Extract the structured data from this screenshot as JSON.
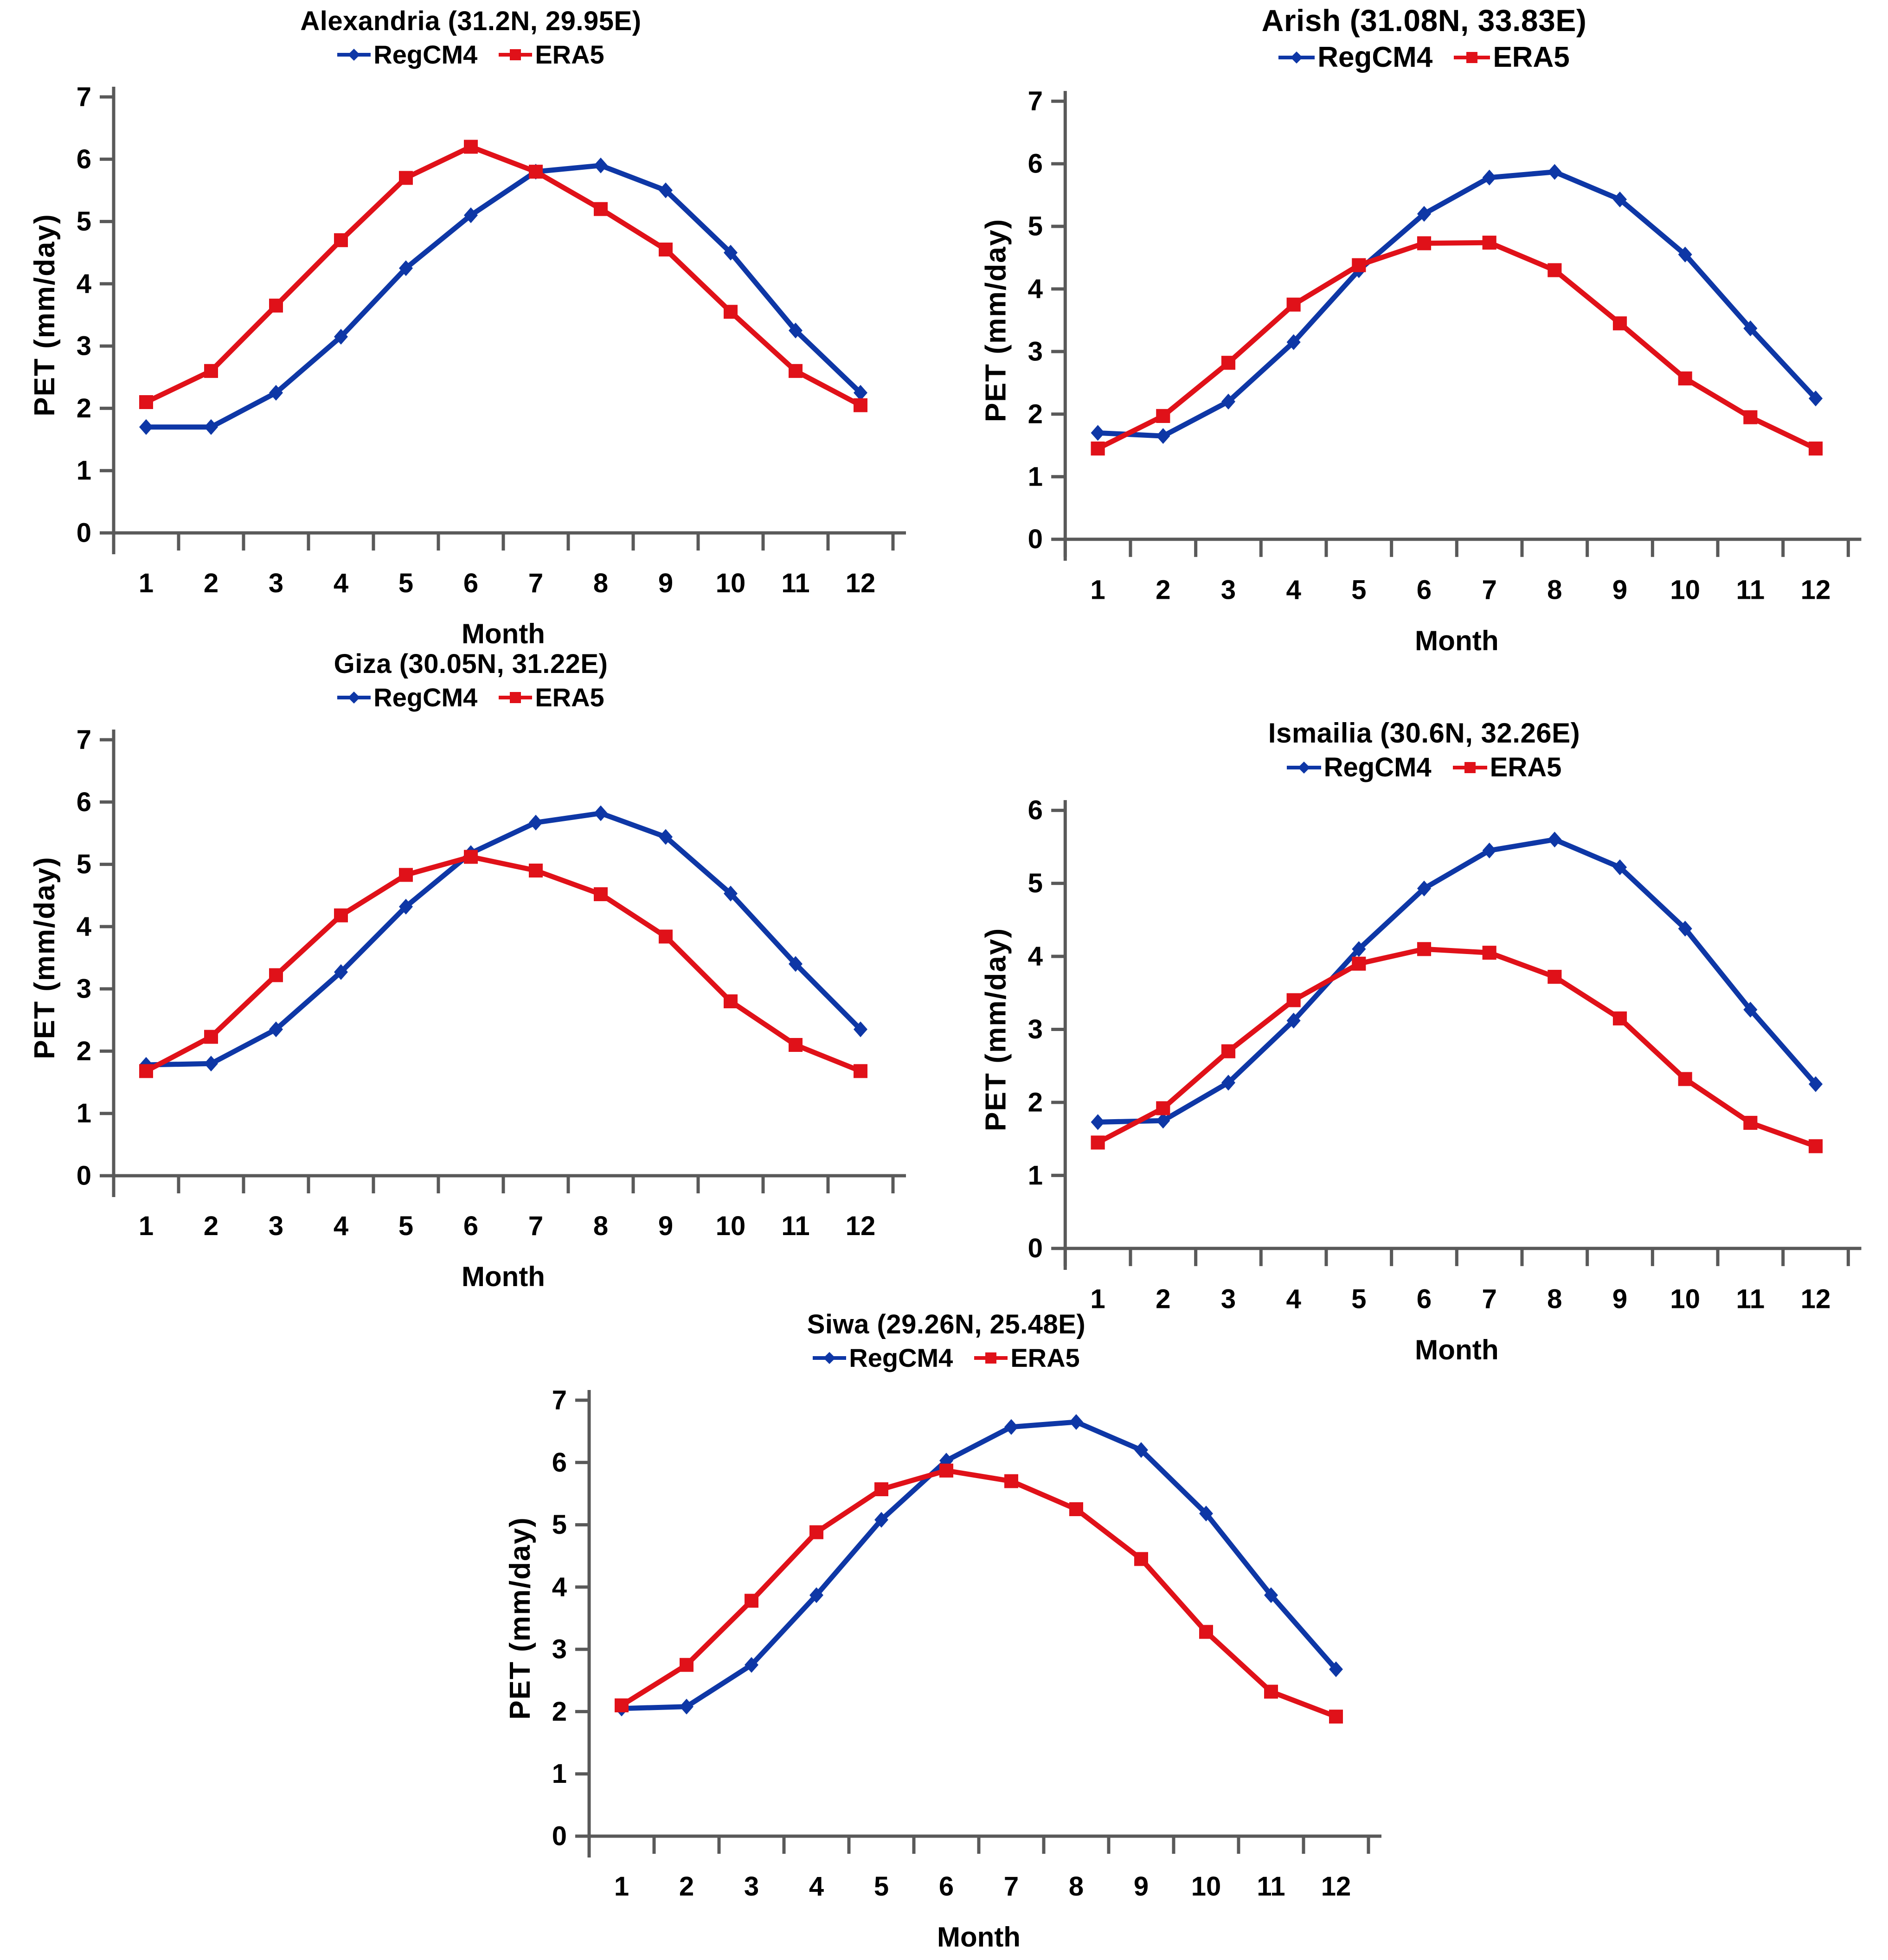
{
  "figure": {
    "description": "Monthly potential evapotranspiration comparison of RegCM4 and ERA5 at five Egyptian stations",
    "background": "#ffffff"
  },
  "colors": {
    "regcm4": "#0e37a6",
    "era5": "#e01119",
    "axis_line": "#595959",
    "tick_text": "#000000"
  },
  "axes": {
    "xlabel": "Month",
    "ylabel": "PET (mm/day)"
  },
  "chart_data": [
    {
      "type": "line",
      "title": "Alexandria (31.2N, 29.95E)",
      "xlabel": "Month",
      "ylabel": "PET (mm/day)",
      "categories": [
        "1",
        "2",
        "3",
        "4",
        "5",
        "6",
        "7",
        "8",
        "9",
        "10",
        "11",
        "12"
      ],
      "ylim": [
        0,
        7
      ],
      "yticks": [
        0,
        1,
        2,
        3,
        4,
        5,
        6,
        7
      ],
      "grid": false,
      "legend_position": "top",
      "series": [
        {
          "name": "RegCM4",
          "marker": "diamond",
          "color": "#0e37a6",
          "values": [
            1.7,
            1.7,
            2.25,
            3.15,
            4.25,
            5.1,
            5.8,
            5.9,
            5.5,
            4.5,
            3.25,
            2.25
          ]
        },
        {
          "name": "ERA5",
          "marker": "square",
          "color": "#e01119",
          "values": [
            2.1,
            2.6,
            3.65,
            4.7,
            5.7,
            6.2,
            5.8,
            5.2,
            4.55,
            3.55,
            2.6,
            2.05
          ]
        }
      ]
    },
    {
      "type": "line",
      "title": "Arish (31.08N, 33.83E)",
      "xlabel": "Month",
      "ylabel": "PET (mm/day)",
      "categories": [
        "1",
        "2",
        "3",
        "4",
        "5",
        "6",
        "7",
        "8",
        "9",
        "10",
        "11",
        "12"
      ],
      "ylim": [
        0,
        7
      ],
      "yticks": [
        0,
        1,
        2,
        3,
        4,
        5,
        6,
        7
      ],
      "grid": false,
      "legend_position": "top",
      "series": [
        {
          "name": "RegCM4",
          "marker": "diamond",
          "color": "#0e37a6",
          "values": [
            1.7,
            1.65,
            2.2,
            3.15,
            4.3,
            5.2,
            5.78,
            5.87,
            5.43,
            4.55,
            3.37,
            2.25
          ]
        },
        {
          "name": "ERA5",
          "marker": "square",
          "color": "#e01119",
          "values": [
            1.45,
            1.97,
            2.82,
            3.75,
            4.38,
            4.73,
            4.74,
            4.3,
            3.45,
            2.57,
            1.95,
            1.45
          ]
        }
      ]
    },
    {
      "type": "line",
      "title": "Giza (30.05N, 31.22E)",
      "xlabel": "Month",
      "ylabel": "PET (mm/day)",
      "categories": [
        "1",
        "2",
        "3",
        "4",
        "5",
        "6",
        "7",
        "8",
        "9",
        "10",
        "11",
        "12"
      ],
      "ylim": [
        0,
        7
      ],
      "yticks": [
        0,
        1,
        2,
        3,
        4,
        5,
        6,
        7
      ],
      "grid": false,
      "legend_position": "top",
      "series": [
        {
          "name": "RegCM4",
          "marker": "diamond",
          "color": "#0e37a6",
          "values": [
            1.78,
            1.8,
            2.35,
            3.27,
            4.32,
            5.18,
            5.67,
            5.82,
            5.44,
            4.53,
            3.4,
            2.35
          ]
        },
        {
          "name": "ERA5",
          "marker": "square",
          "color": "#e01119",
          "values": [
            1.68,
            2.23,
            3.22,
            4.18,
            4.83,
            5.12,
            4.9,
            4.52,
            3.84,
            2.8,
            2.1,
            1.68
          ]
        }
      ]
    },
    {
      "type": "line",
      "title": "Ismailia (30.6N, 32.26E)",
      "xlabel": "Month",
      "ylabel": "PET (mm/day)",
      "categories": [
        "1",
        "2",
        "3",
        "4",
        "5",
        "6",
        "7",
        "8",
        "9",
        "10",
        "11",
        "12"
      ],
      "ylim": [
        0,
        6
      ],
      "yticks": [
        0,
        1,
        2,
        3,
        4,
        5,
        6
      ],
      "grid": false,
      "legend_position": "top",
      "series": [
        {
          "name": "RegCM4",
          "marker": "diamond",
          "color": "#0e37a6",
          "values": [
            1.73,
            1.75,
            2.27,
            3.12,
            4.1,
            4.93,
            5.45,
            5.6,
            5.22,
            4.38,
            3.27,
            2.25
          ]
        },
        {
          "name": "ERA5",
          "marker": "square",
          "color": "#e01119",
          "values": [
            1.45,
            1.92,
            2.7,
            3.4,
            3.9,
            4.1,
            4.05,
            3.72,
            3.15,
            2.32,
            1.72,
            1.4
          ]
        }
      ]
    },
    {
      "type": "line",
      "title": "Siwa (29.26N, 25.48E)",
      "xlabel": "Month",
      "ylabel": "PET (mm/day)",
      "categories": [
        "1",
        "2",
        "3",
        "4",
        "5",
        "6",
        "7",
        "8",
        "9",
        "10",
        "11",
        "12"
      ],
      "ylim": [
        0,
        7
      ],
      "yticks": [
        0,
        1,
        2,
        3,
        4,
        5,
        6,
        7
      ],
      "grid": false,
      "legend_position": "top",
      "series": [
        {
          "name": "RegCM4",
          "marker": "diamond",
          "color": "#0e37a6",
          "values": [
            2.05,
            2.08,
            2.75,
            3.87,
            5.08,
            6.03,
            6.57,
            6.65,
            6.2,
            5.18,
            3.87,
            2.68
          ]
        },
        {
          "name": "ERA5",
          "marker": "square",
          "color": "#e01119",
          "values": [
            2.1,
            2.75,
            3.78,
            4.88,
            5.57,
            5.87,
            5.7,
            5.25,
            4.45,
            3.28,
            2.32,
            1.92
          ]
        }
      ]
    }
  ]
}
